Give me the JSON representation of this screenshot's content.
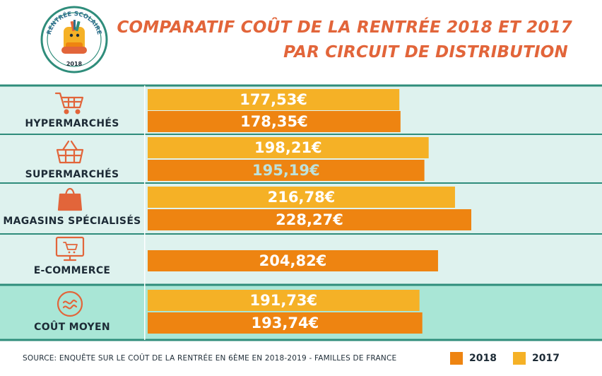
{
  "header": {
    "badge_text_top": "RENTRÉE SCOLAIRE",
    "badge_text_bottom": "2018",
    "title_line1": "COMPARATIF COÛT DE LA RENTRÉE 2018 ET 2017",
    "title_line2": "PAR CIRCUIT DE DISTRIBUTION"
  },
  "colors": {
    "y2018": "#ee8411",
    "y2017": "#f5b126",
    "row_bg": "#def2ee",
    "row_bg_avg": "#a9e6d6",
    "row_border": "#2f8d7b",
    "accent": "#e2653a",
    "label_highlight": "#bde2dc"
  },
  "chart_data": {
    "type": "bar",
    "orientation": "horizontal",
    "title": "COMPARATIF COÛT DE LA RENTRÉE 2018 ET 2017 PAR CIRCUIT DE DISTRIBUTION",
    "categories": [
      "HYPERMARCHÉS",
      "SUPERMARCHÉS",
      "MAGASINS SPÉCIALISÉS",
      "E-COMMERCE",
      "COÛT MOYEN"
    ],
    "category_icons": [
      "shopping-cart-icon",
      "shopping-basket-icon",
      "shopping-bag-icon",
      "computer-cart-icon",
      "approximately-icon"
    ],
    "series": [
      {
        "name": "2017",
        "values": [
          177.53,
          198.21,
          216.78,
          null,
          191.73
        ],
        "labels": [
          "177,53€",
          "198,21€",
          "216,78€",
          "",
          "191,73€"
        ]
      },
      {
        "name": "2018",
        "values": [
          178.35,
          195.19,
          228.27,
          204.82,
          193.74
        ],
        "labels": [
          "178,35€",
          "195,19€",
          "228,27€",
          "204,82€",
          "193,74€"
        ]
      }
    ],
    "legend": {
      "position": "bottom-right",
      "entries": [
        "2018",
        "2017"
      ]
    }
  },
  "footer": {
    "source": "SOURCE: ENQUÊTE SUR LE COÛT DE LA RENTRÉE EN 6ÈME EN 2018-2019 - FAMILLES DE FRANCE",
    "legend_2018": "2018",
    "legend_2017": "2017"
  }
}
